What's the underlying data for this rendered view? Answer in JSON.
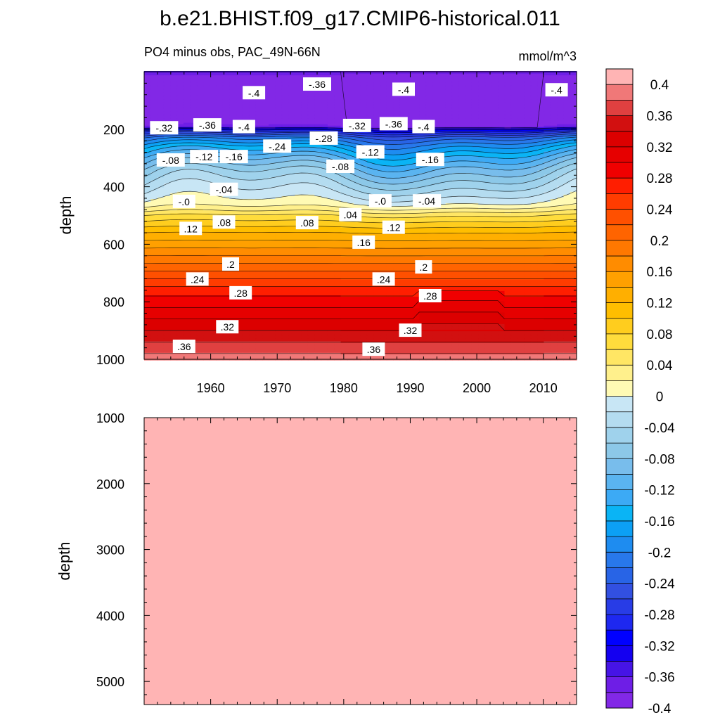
{
  "figure": {
    "title": "b.e21.BHIST.f09_g17.CMIP6-historical.011",
    "subtitle_left": "PO4 minus obs, PAC_49N-66N",
    "subtitle_right": "mmol/m^3"
  },
  "chart_data": [
    {
      "type": "heatmap",
      "panel": "upper",
      "ylabel": "depth",
      "xlim": [
        1950,
        2015
      ],
      "ylim": [
        1000,
        0
      ],
      "xticks": [
        1960,
        1970,
        1980,
        1990,
        2000,
        2010
      ],
      "yticks": [
        200,
        400,
        600,
        800,
        1000
      ],
      "profile": {
        "depth": [
          0,
          20,
          50,
          80,
          110,
          140,
          170,
          190,
          200,
          210,
          230,
          260,
          300,
          340,
          380,
          410,
          440,
          460,
          480,
          500,
          530,
          560,
          600,
          640,
          680,
          720,
          760,
          800,
          840,
          880,
          920,
          960,
          1000
        ],
        "value": [
          -0.36,
          -0.4,
          -0.42,
          -0.42,
          -0.42,
          -0.42,
          -0.41,
          -0.38,
          -0.32,
          -0.28,
          -0.22,
          -0.17,
          -0.12,
          -0.08,
          -0.05,
          -0.03,
          -0.01,
          0.005,
          0.03,
          0.06,
          0.09,
          0.12,
          0.15,
          0.18,
          0.21,
          0.24,
          0.27,
          0.29,
          0.31,
          0.33,
          0.35,
          0.37,
          0.39
        ]
      },
      "contour_labels": [
        {
          "text": "-.36",
          "x": 1976.0,
          "y": 44
        },
        {
          "text": "-.4",
          "x": 1966.5,
          "y": 74
        },
        {
          "text": "-.4",
          "x": 1989.0,
          "y": 62
        },
        {
          "text": "-.4",
          "x": 2012.0,
          "y": 64
        },
        {
          "text": "-.32",
          "x": 1953.0,
          "y": 196
        },
        {
          "text": "-.36",
          "x": 1959.5,
          "y": 186
        },
        {
          "text": "-.4",
          "x": 1965.0,
          "y": 192
        },
        {
          "text": "-.24",
          "x": 1970.0,
          "y": 260
        },
        {
          "text": "-.28",
          "x": 1977.0,
          "y": 232
        },
        {
          "text": "-.32",
          "x": 1982.0,
          "y": 188
        },
        {
          "text": "-.36",
          "x": 1987.5,
          "y": 182
        },
        {
          "text": "-.4",
          "x": 1992.0,
          "y": 192
        },
        {
          "text": "-.08",
          "x": 1954.0,
          "y": 308
        },
        {
          "text": "-.12",
          "x": 1959.0,
          "y": 296
        },
        {
          "text": "-.16",
          "x": 1963.5,
          "y": 296
        },
        {
          "text": "-.12",
          "x": 1984.0,
          "y": 280
        },
        {
          "text": "-.08",
          "x": 1979.5,
          "y": 330
        },
        {
          "text": "-.16",
          "x": 1993.0,
          "y": 306
        },
        {
          "text": "-.04",
          "x": 1962.0,
          "y": 410
        },
        {
          "text": "-.0",
          "x": 1956.0,
          "y": 452
        },
        {
          "text": "-.0",
          "x": 1985.5,
          "y": 450
        },
        {
          "text": "-.04",
          "x": 1992.5,
          "y": 450
        },
        {
          "text": ".04",
          "x": 1981.0,
          "y": 498
        },
        {
          "text": ".08",
          "x": 1962.0,
          "y": 524
        },
        {
          "text": ".08",
          "x": 1974.5,
          "y": 526
        },
        {
          "text": ".12",
          "x": 1957.0,
          "y": 546
        },
        {
          "text": ".12",
          "x": 1987.5,
          "y": 542
        },
        {
          "text": ".16",
          "x": 1983.0,
          "y": 594
        },
        {
          "text": ".2",
          "x": 1963.0,
          "y": 670
        },
        {
          "text": ".2",
          "x": 1992.0,
          "y": 680
        },
        {
          "text": ".24",
          "x": 1958.0,
          "y": 722
        },
        {
          "text": ".24",
          "x": 1986.0,
          "y": 722
        },
        {
          "text": ".28",
          "x": 1964.5,
          "y": 770
        },
        {
          "text": ".28",
          "x": 1993.0,
          "y": 780
        },
        {
          "text": ".32",
          "x": 1962.5,
          "y": 888
        },
        {
          "text": ".32",
          "x": 1990.0,
          "y": 900
        },
        {
          "text": ".36",
          "x": 1956.0,
          "y": 956
        },
        {
          "text": ".36",
          "x": 1984.5,
          "y": 966
        }
      ]
    },
    {
      "type": "heatmap",
      "panel": "lower",
      "ylabel": "depth",
      "xlim": [
        1950,
        2015
      ],
      "ylim": [
        5350,
        1000
      ],
      "yticks": [
        1000,
        2000,
        3000,
        4000,
        5000
      ],
      "fill_value": 0.41
    }
  ],
  "colorbar": {
    "labels": [
      "0.4",
      "0.36",
      "0.32",
      "0.28",
      "0.24",
      "0.2",
      "0.16",
      "0.12",
      "0.08",
      "0.04",
      "0",
      "-0.04",
      "-0.08",
      "-0.12",
      "-0.16",
      "-0.2",
      "-0.24",
      "-0.28",
      "-0.32",
      "-0.36",
      "-0.4"
    ],
    "colors": [
      "#ffb4b4",
      "#f07878",
      "#e04040",
      "#d21010",
      "#dc0000",
      "#e60000",
      "#f00000",
      "#ff1e00",
      "#ff3c00",
      "#ff5000",
      "#ff6400",
      "#ff7800",
      "#ff8c00",
      "#ffa000",
      "#ffaf00",
      "#ffbe00",
      "#ffcd1e",
      "#ffdc3c",
      "#ffe664",
      "#fff08c",
      "#fffab4",
      "#c8e6f5",
      "#b4dcf0",
      "#9fd2ec",
      "#8cc8e8",
      "#78bdec",
      "#5ab4f0",
      "#3caaf5",
      "#0ab4f5",
      "#0ca0f5",
      "#1e8cf0",
      "#2878eb",
      "#2864e6",
      "#3250e1",
      "#283ce6",
      "#1e28f0",
      "#0000ff",
      "#1400f0",
      "#4614e6",
      "#6e1ee6",
      "#8228e6"
    ]
  }
}
